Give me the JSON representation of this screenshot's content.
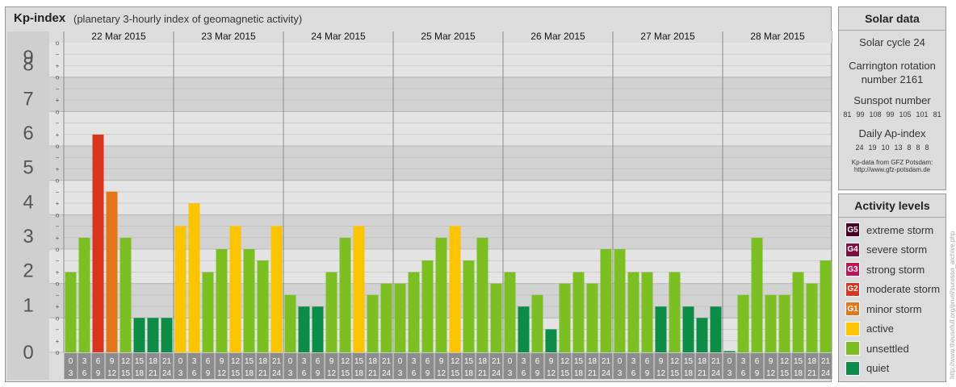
{
  "header": {
    "title": "Kp-index",
    "subtitle": "(planetary 3-hourly index of geomagnetic activity)"
  },
  "solar": {
    "title": "Solar data",
    "cycle": "Solar cycle 24",
    "carrington_label": "Carrington rotation",
    "carrington_number": "number 2161",
    "sunspot_label": "Sunspot number",
    "sunspot_values": [
      81,
      99,
      108,
      99,
      105,
      101,
      81
    ],
    "ap_label": "Daily Ap-index",
    "ap_values": [
      24,
      19,
      10,
      13,
      8,
      8,
      8
    ],
    "source_line1": "Kp-data from GFZ Potsdam:",
    "source_line2": "http://www.gfz-potsdam.de"
  },
  "levels": {
    "title": "Activity levels",
    "items": [
      {
        "code": "G5",
        "label": "extreme storm",
        "color": "#4b0022"
      },
      {
        "code": "G4",
        "label": "severe storm",
        "color": "#7a1040"
      },
      {
        "code": "G3",
        "label": "strong storm",
        "color": "#b8145a"
      },
      {
        "code": "G2",
        "label": "moderate storm",
        "color": "#d8341e"
      },
      {
        "code": "G1",
        "label": "minor storm",
        "color": "#e2761c"
      },
      {
        "code": "",
        "label": "active",
        "color": "#fbc400"
      },
      {
        "code": "",
        "label": "unsettled",
        "color": "#7bbf22"
      },
      {
        "code": "",
        "label": "quiet",
        "color": "#0c8c46"
      }
    ]
  },
  "watermark": "http://www.theusefull.org/pruel/surosso_archive.php",
  "chart_data": {
    "type": "bar",
    "ylim": [
      0,
      9
    ],
    "y_ticks": [
      0,
      1,
      2,
      3,
      4,
      5,
      6,
      7,
      8,
      9
    ],
    "sub_ticks": [
      "o",
      "+",
      "−"
    ],
    "days": [
      "22 Mar 2015",
      "23 Mar 2015",
      "24 Mar 2015",
      "25 Mar 2015",
      "26 Mar 2015",
      "27 Mar 2015",
      "28 Mar 2015"
    ],
    "slots_top": [
      "0",
      "3",
      "6",
      "9",
      "12",
      "15",
      "18",
      "21"
    ],
    "slots_bottom": [
      "3",
      "6",
      "9",
      "12",
      "15",
      "18",
      "21",
      "24"
    ],
    "values": [
      [
        2.33,
        3.33,
        6.33,
        4.67,
        3.33,
        1.0,
        1.0,
        1.0
      ],
      [
        3.67,
        4.33,
        2.33,
        3.0,
        3.67,
        3.0,
        2.67,
        3.67
      ],
      [
        1.67,
        1.33,
        1.33,
        2.33,
        3.33,
        3.67,
        1.67,
        2.0
      ],
      [
        2.0,
        2.33,
        2.67,
        3.33,
        3.67,
        2.67,
        3.33,
        2.0
      ],
      [
        2.33,
        1.33,
        1.67,
        0.67,
        2.0,
        2.33,
        2.0,
        3.0
      ],
      [
        3.0,
        2.33,
        2.33,
        1.33,
        2.33,
        1.33,
        1.0,
        1.33
      ],
      [
        0.0,
        1.67,
        3.33,
        1.67,
        1.67,
        2.33,
        2.0,
        2.67
      ]
    ],
    "colors": {
      "quiet": "#0c8c46",
      "unsettled": "#7bbf22",
      "active": "#fbc400",
      "minor": "#e2761c",
      "moderate": "#d8341e",
      "strong": "#b8145a",
      "severe": "#7a1040",
      "extreme": "#4b0022"
    }
  }
}
